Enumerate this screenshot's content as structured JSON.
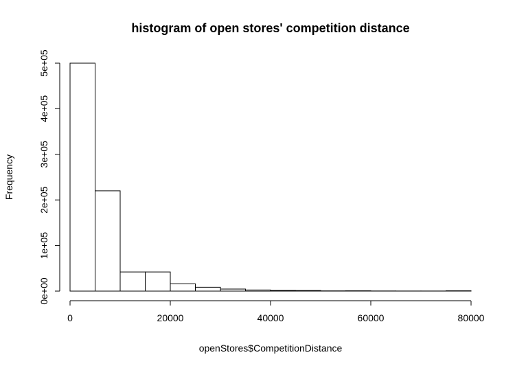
{
  "chart_data": {
    "type": "bar",
    "title": "histogram of open stores' competition distance",
    "xlabel": "openStores$CompetitionDistance",
    "ylabel": "Frequency",
    "xlim": [
      0,
      80000
    ],
    "ylim": [
      0,
      500000
    ],
    "x_ticks": [
      0,
      20000,
      40000,
      60000,
      80000
    ],
    "x_tick_labels": [
      "0",
      "20000",
      "40000",
      "60000",
      "80000"
    ],
    "y_ticks": [
      0,
      100000,
      200000,
      300000,
      400000,
      500000
    ],
    "y_tick_labels": [
      "0e+00",
      "1e+05",
      "2e+05",
      "3e+05",
      "4e+05",
      "5e+05"
    ],
    "bin_width": 5000,
    "bins": [
      {
        "start": 0,
        "end": 5000,
        "value": 500000
      },
      {
        "start": 5000,
        "end": 10000,
        "value": 220000
      },
      {
        "start": 10000,
        "end": 15000,
        "value": 42000
      },
      {
        "start": 15000,
        "end": 20000,
        "value": 42000
      },
      {
        "start": 20000,
        "end": 25000,
        "value": 16000
      },
      {
        "start": 25000,
        "end": 30000,
        "value": 8500
      },
      {
        "start": 30000,
        "end": 35000,
        "value": 4500
      },
      {
        "start": 35000,
        "end": 40000,
        "value": 2500
      },
      {
        "start": 40000,
        "end": 45000,
        "value": 1500
      },
      {
        "start": 45000,
        "end": 50000,
        "value": 1300
      },
      {
        "start": 50000,
        "end": 55000,
        "value": 500
      },
      {
        "start": 55000,
        "end": 60000,
        "value": 700
      },
      {
        "start": 60000,
        "end": 65000,
        "value": 300
      },
      {
        "start": 65000,
        "end": 70000,
        "value": 200
      },
      {
        "start": 70000,
        "end": 75000,
        "value": 200
      },
      {
        "start": 75000,
        "end": 80000,
        "value": 700
      }
    ],
    "grid": false,
    "legend": "none"
  }
}
